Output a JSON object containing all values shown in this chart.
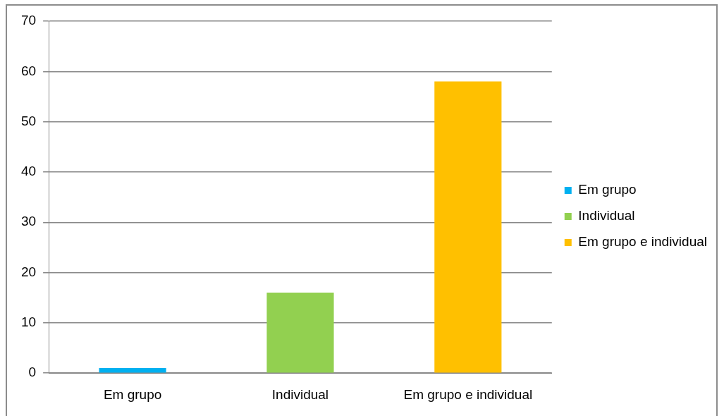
{
  "chart_data": {
    "type": "bar",
    "categories": [
      "Em grupo",
      "Individual",
      "Em grupo e individual"
    ],
    "series": [
      {
        "name": "Em grupo",
        "color": "#00b0f0",
        "values": [
          1,
          null,
          null
        ]
      },
      {
        "name": "Individual",
        "color": "#92d050",
        "values": [
          null,
          16,
          null
        ]
      },
      {
        "name": "Em grupo e individual",
        "color": "#ffc000",
        "values": [
          null,
          null,
          58
        ]
      }
    ],
    "ylim": [
      0,
      70
    ],
    "yticks": [
      0,
      10,
      20,
      30,
      40,
      50,
      60,
      70
    ],
    "grid": "y",
    "legend": "right"
  }
}
